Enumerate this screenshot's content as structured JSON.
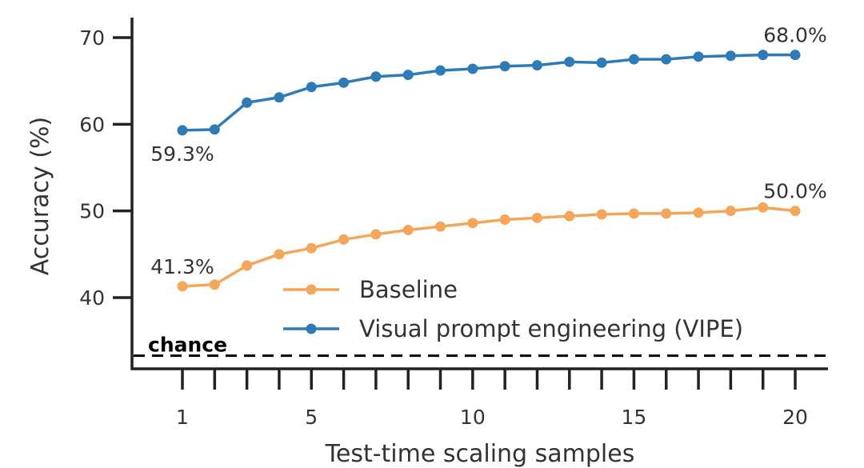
{
  "chart_data": {
    "type": "line",
    "xlabel": "Test-time scaling samples",
    "ylabel": "Accuracy (%)",
    "xlim": [
      0,
      21
    ],
    "ylim": [
      32.5,
      73
    ],
    "x_ticks": [
      1,
      5,
      10,
      15,
      20
    ],
    "x_tick_labels": [
      "1",
      "5",
      "10",
      "15",
      "20"
    ],
    "x_minor_ticks": [
      2,
      3,
      4,
      6,
      7,
      8,
      9,
      11,
      12,
      13,
      14,
      16,
      17,
      18,
      19
    ],
    "y_ticks": [
      40,
      50,
      60,
      70
    ],
    "y_tick_labels": [
      "40",
      "50",
      "60",
      "70"
    ],
    "grid": false,
    "legend_position": "lower-center",
    "x": [
      1,
      2,
      3,
      4,
      5,
      6,
      7,
      8,
      9,
      10,
      11,
      12,
      13,
      14,
      15,
      16,
      17,
      18,
      19,
      20
    ],
    "series": [
      {
        "name": "Baseline",
        "color": "#F4A65A",
        "values": [
          41.3,
          41.5,
          43.7,
          45.0,
          45.7,
          46.7,
          47.3,
          47.8,
          48.2,
          48.6,
          49.0,
          49.2,
          49.4,
          49.6,
          49.7,
          49.7,
          49.8,
          50.0,
          50.4,
          50.0
        ]
      },
      {
        "name": "Visual prompt engineering (VIPE)",
        "color": "#2E7BB8",
        "values": [
          59.3,
          59.4,
          62.5,
          63.1,
          64.3,
          64.8,
          65.5,
          65.7,
          66.2,
          66.4,
          66.7,
          66.8,
          67.2,
          67.1,
          67.5,
          67.5,
          67.8,
          67.9,
          68.0,
          68.0
        ]
      }
    ],
    "annotations": [
      {
        "text": "41.3%",
        "x": 1,
        "y": 41.3,
        "series": 0,
        "anchor": "above"
      },
      {
        "text": "50.0%",
        "x": 20,
        "y": 50.0,
        "series": 0,
        "anchor": "above"
      },
      {
        "text": "59.3%",
        "x": 1,
        "y": 59.3,
        "series": 1,
        "anchor": "below"
      },
      {
        "text": "68.0%",
        "x": 20,
        "y": 68.0,
        "series": 1,
        "anchor": "above"
      }
    ],
    "reference_line": {
      "label": "chance",
      "y": 33.3,
      "style": "dashed",
      "color": "#000000"
    }
  }
}
